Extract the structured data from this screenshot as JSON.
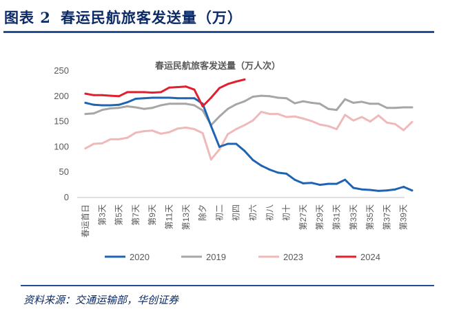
{
  "figure": {
    "label": "图表 2",
    "title": "春运民航旅客发送量（万）",
    "source": "资料来源：交通运输部，华创证券"
  },
  "chart_data": {
    "type": "line",
    "title": "春运民航旅客发送量（万人次）",
    "xlabel": "",
    "ylabel": "",
    "ylim": [
      0,
      250
    ],
    "yticks": [
      0,
      50,
      100,
      150,
      200,
      250
    ],
    "grid": false,
    "legend": "bottom",
    "x_tick_labels": [
      "春运首日",
      "第3天",
      "第5天",
      "第7天",
      "第9天",
      "第11天",
      "第13天",
      "除夕",
      "初二",
      "初四",
      "初六",
      "初八",
      "初十",
      "第27天",
      "第29天",
      "第31天",
      "第33天",
      "第35天",
      "第37天",
      "第39天"
    ],
    "n_points": 40,
    "series": [
      {
        "name": "2020",
        "color": "#1f64b3",
        "values": [
          187,
          183,
          182,
          182,
          183,
          188,
          195,
          196,
          197,
          197,
          197,
          196,
          196,
          196,
          185,
          141,
          100,
          106,
          106,
          92,
          74,
          63,
          55,
          49,
          47,
          35,
          28,
          29,
          25,
          27,
          27,
          35,
          19,
          16,
          15,
          13,
          14,
          16,
          21,
          14
        ]
      },
      {
        "name": "2019",
        "color": "#a6a6a6",
        "values": [
          165,
          166,
          173,
          176,
          177,
          180,
          178,
          175,
          177,
          182,
          185,
          185,
          185,
          182,
          172,
          143,
          160,
          175,
          184,
          190,
          199,
          201,
          200,
          197,
          196,
          186,
          190,
          187,
          185,
          175,
          173,
          194,
          187,
          189,
          185,
          185,
          177,
          177,
          178,
          178
        ]
      },
      {
        "name": "2023",
        "color": "#f0b9b9",
        "values": [
          97,
          106,
          107,
          115,
          115,
          118,
          128,
          131,
          132,
          126,
          129,
          136,
          138,
          135,
          127,
          75,
          95,
          125,
          135,
          143,
          152,
          169,
          165,
          165,
          159,
          160,
          156,
          151,
          144,
          141,
          135,
          163,
          152,
          159,
          150,
          162,
          148,
          145,
          133,
          149
        ]
      },
      {
        "name": "2024",
        "color": "#e0202e",
        "values": [
          205,
          202,
          202,
          201,
          200,
          208,
          208,
          208,
          207,
          208,
          217,
          218,
          219,
          213,
          180,
          197,
          216,
          224,
          229,
          233
        ]
      }
    ]
  }
}
